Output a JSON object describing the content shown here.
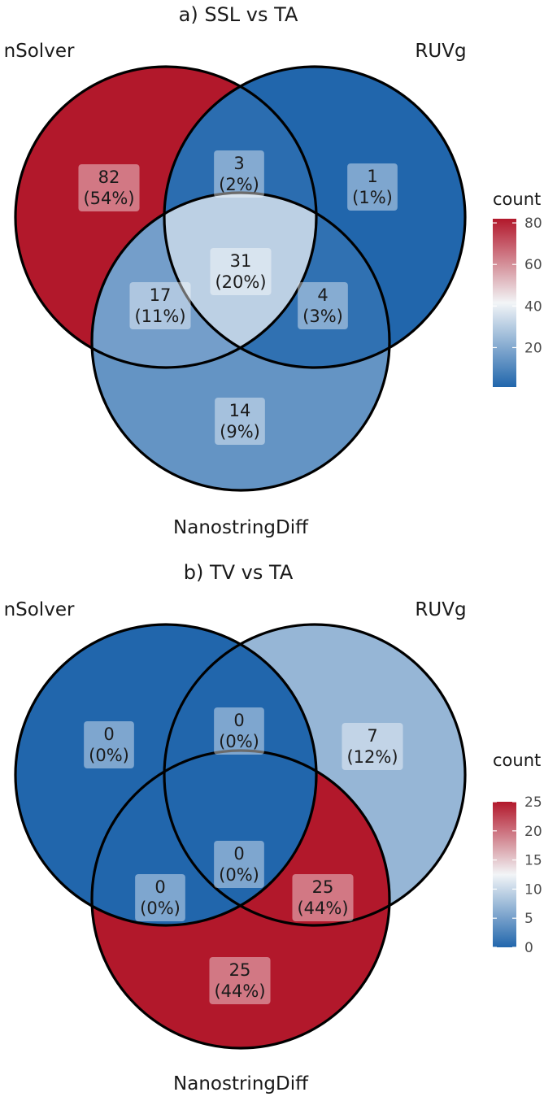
{
  "chart_data": [
    {
      "type": "venn",
      "title": "a) SSL vs TA",
      "sets": [
        "nSolver",
        "RUVg",
        "NanostringDiff"
      ],
      "regions": [
        {
          "key": "nSolver_only",
          "sets": [
            "nSolver"
          ],
          "count": "82",
          "pct": "(54%)",
          "value": 82
        },
        {
          "key": "nSolver_RUVg",
          "sets": [
            "nSolver",
            "RUVg"
          ],
          "count": "3",
          "pct": "(2%)",
          "value": 3
        },
        {
          "key": "RUVg_only",
          "sets": [
            "RUVg"
          ],
          "count": "1",
          "pct": "(1%)",
          "value": 1
        },
        {
          "key": "all",
          "sets": [
            "nSolver",
            "RUVg",
            "NanostringDiff"
          ],
          "count": "31",
          "pct": "(20%)",
          "value": 31
        },
        {
          "key": "nSolver_Nano",
          "sets": [
            "nSolver",
            "NanostringDiff"
          ],
          "count": "17",
          "pct": "(11%)",
          "value": 17
        },
        {
          "key": "RUVg_Nano",
          "sets": [
            "RUVg",
            "NanostringDiff"
          ],
          "count": "4",
          "pct": "(3%)",
          "value": 4
        },
        {
          "key": "Nano_only",
          "sets": [
            "NanostringDiff"
          ],
          "count": "14",
          "pct": "(9%)",
          "value": 14
        }
      ],
      "legend": {
        "title": "count",
        "min": 1,
        "max": 82,
        "ticks": [
          "20",
          "40",
          "60",
          "80"
        ],
        "tick_values": [
          20,
          40,
          60,
          80
        ]
      }
    },
    {
      "type": "venn",
      "title": "b) TV vs TA",
      "sets": [
        "nSolver",
        "RUVg",
        "NanostringDiff"
      ],
      "regions": [
        {
          "key": "nSolver_only",
          "sets": [
            "nSolver"
          ],
          "count": "0",
          "pct": "(0%)",
          "value": 0
        },
        {
          "key": "nSolver_RUVg",
          "sets": [
            "nSolver",
            "RUVg"
          ],
          "count": "0",
          "pct": "(0%)",
          "value": 0
        },
        {
          "key": "RUVg_only",
          "sets": [
            "RUVg"
          ],
          "count": "7",
          "pct": "(12%)",
          "value": 7
        },
        {
          "key": "all",
          "sets": [
            "nSolver",
            "RUVg",
            "NanostringDiff"
          ],
          "count": "0",
          "pct": "(0%)",
          "value": 0
        },
        {
          "key": "nSolver_Nano",
          "sets": [
            "nSolver",
            "NanostringDiff"
          ],
          "count": "0",
          "pct": "(0%)",
          "value": 0
        },
        {
          "key": "RUVg_Nano",
          "sets": [
            "RUVg",
            "NanostringDiff"
          ],
          "count": "25",
          "pct": "(44%)",
          "value": 25
        },
        {
          "key": "Nano_only",
          "sets": [
            "NanostringDiff"
          ],
          "count": "25",
          "pct": "(44%)",
          "value": 25
        }
      ],
      "legend": {
        "title": "count",
        "min": 0,
        "max": 25,
        "ticks": [
          "0",
          "5",
          "10",
          "15",
          "20",
          "25"
        ],
        "tick_values": [
          0,
          5,
          10,
          15,
          20,
          25
        ]
      }
    }
  ],
  "colors": {
    "low": "#2166ac",
    "mid": "#f2f5f7",
    "high": "#b2182b",
    "outline": "#000000",
    "label_box": "#ffffff"
  }
}
